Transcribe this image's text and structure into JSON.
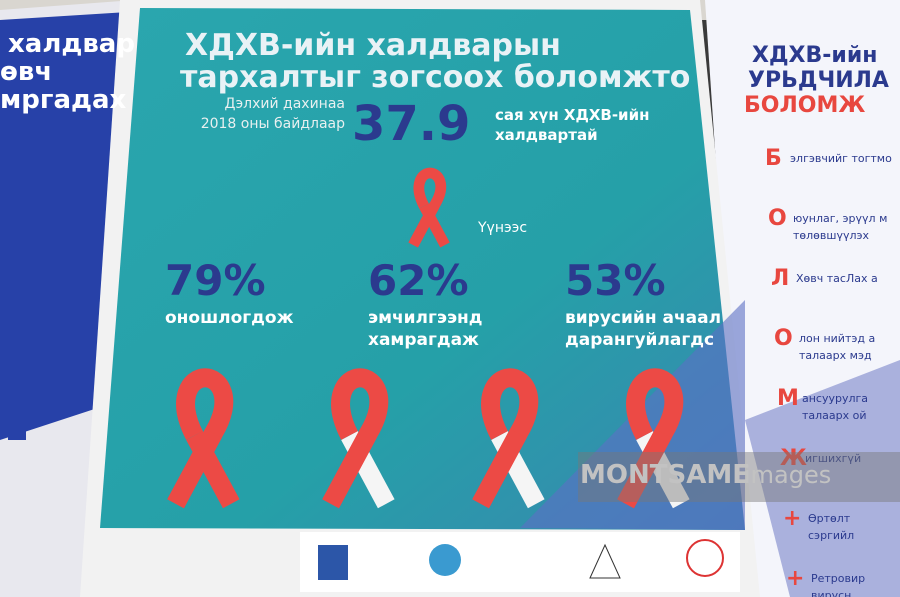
{
  "left_poster": {
    "lines": [
      "халдвар",
      "өвч",
      "мргадах"
    ]
  },
  "center_poster": {
    "title": [
      "ХДХВ-ийн халдварын",
      "тархалтыг зогсоох боломжто"
    ],
    "intro": [
      "Дэлхий дахинаа",
      "2018 оны байдлаар"
    ],
    "headline_number": "37.9",
    "headline_text": [
      "сая хүн ХДХВ-ийн",
      "халдвартай"
    ],
    "of_which": "Үүнээс",
    "stats": [
      {
        "value": "79%",
        "lines": [
          "оношлогдож"
        ]
      },
      {
        "value": "62%",
        "lines": [
          "эмчилгээнд",
          "хамрагдаж"
        ]
      },
      {
        "value": "53%",
        "lines": [
          "вирусийн ачаал",
          "дарангуйлагдс"
        ]
      }
    ]
  },
  "right_poster": {
    "title": [
      "ХДХВ-ийн",
      "УРЬДЧИЛА",
      "БОЛОМЖ"
    ],
    "items": [
      {
        "letter": "Б",
        "lines": [
          "элгэвчийг тогтмо"
        ]
      },
      {
        "letter": "О",
        "lines": [
          "юунлаг, эрүүл м",
          "төлөвшүүлэх"
        ]
      },
      {
        "letter": "Л",
        "lines": [
          "Хөвч тасЛах а"
        ]
      },
      {
        "letter": "О",
        "lines": [
          "лон нийтэд а",
          "талаарх мэд"
        ]
      },
      {
        "letter": "М",
        "lines": [
          "ансуурулга",
          "талаарх ой"
        ]
      },
      {
        "letter": "Ж",
        "lines": [
          "игшихгүй"
        ]
      },
      {
        "letter": "+",
        "lines": [
          "Өртөлт",
          "сэргийл"
        ]
      },
      {
        "letter": "+",
        "lines": [
          "Ретровир",
          "вирусн"
        ]
      }
    ]
  },
  "watermark": [
    "MONTSAME",
    "images"
  ]
}
